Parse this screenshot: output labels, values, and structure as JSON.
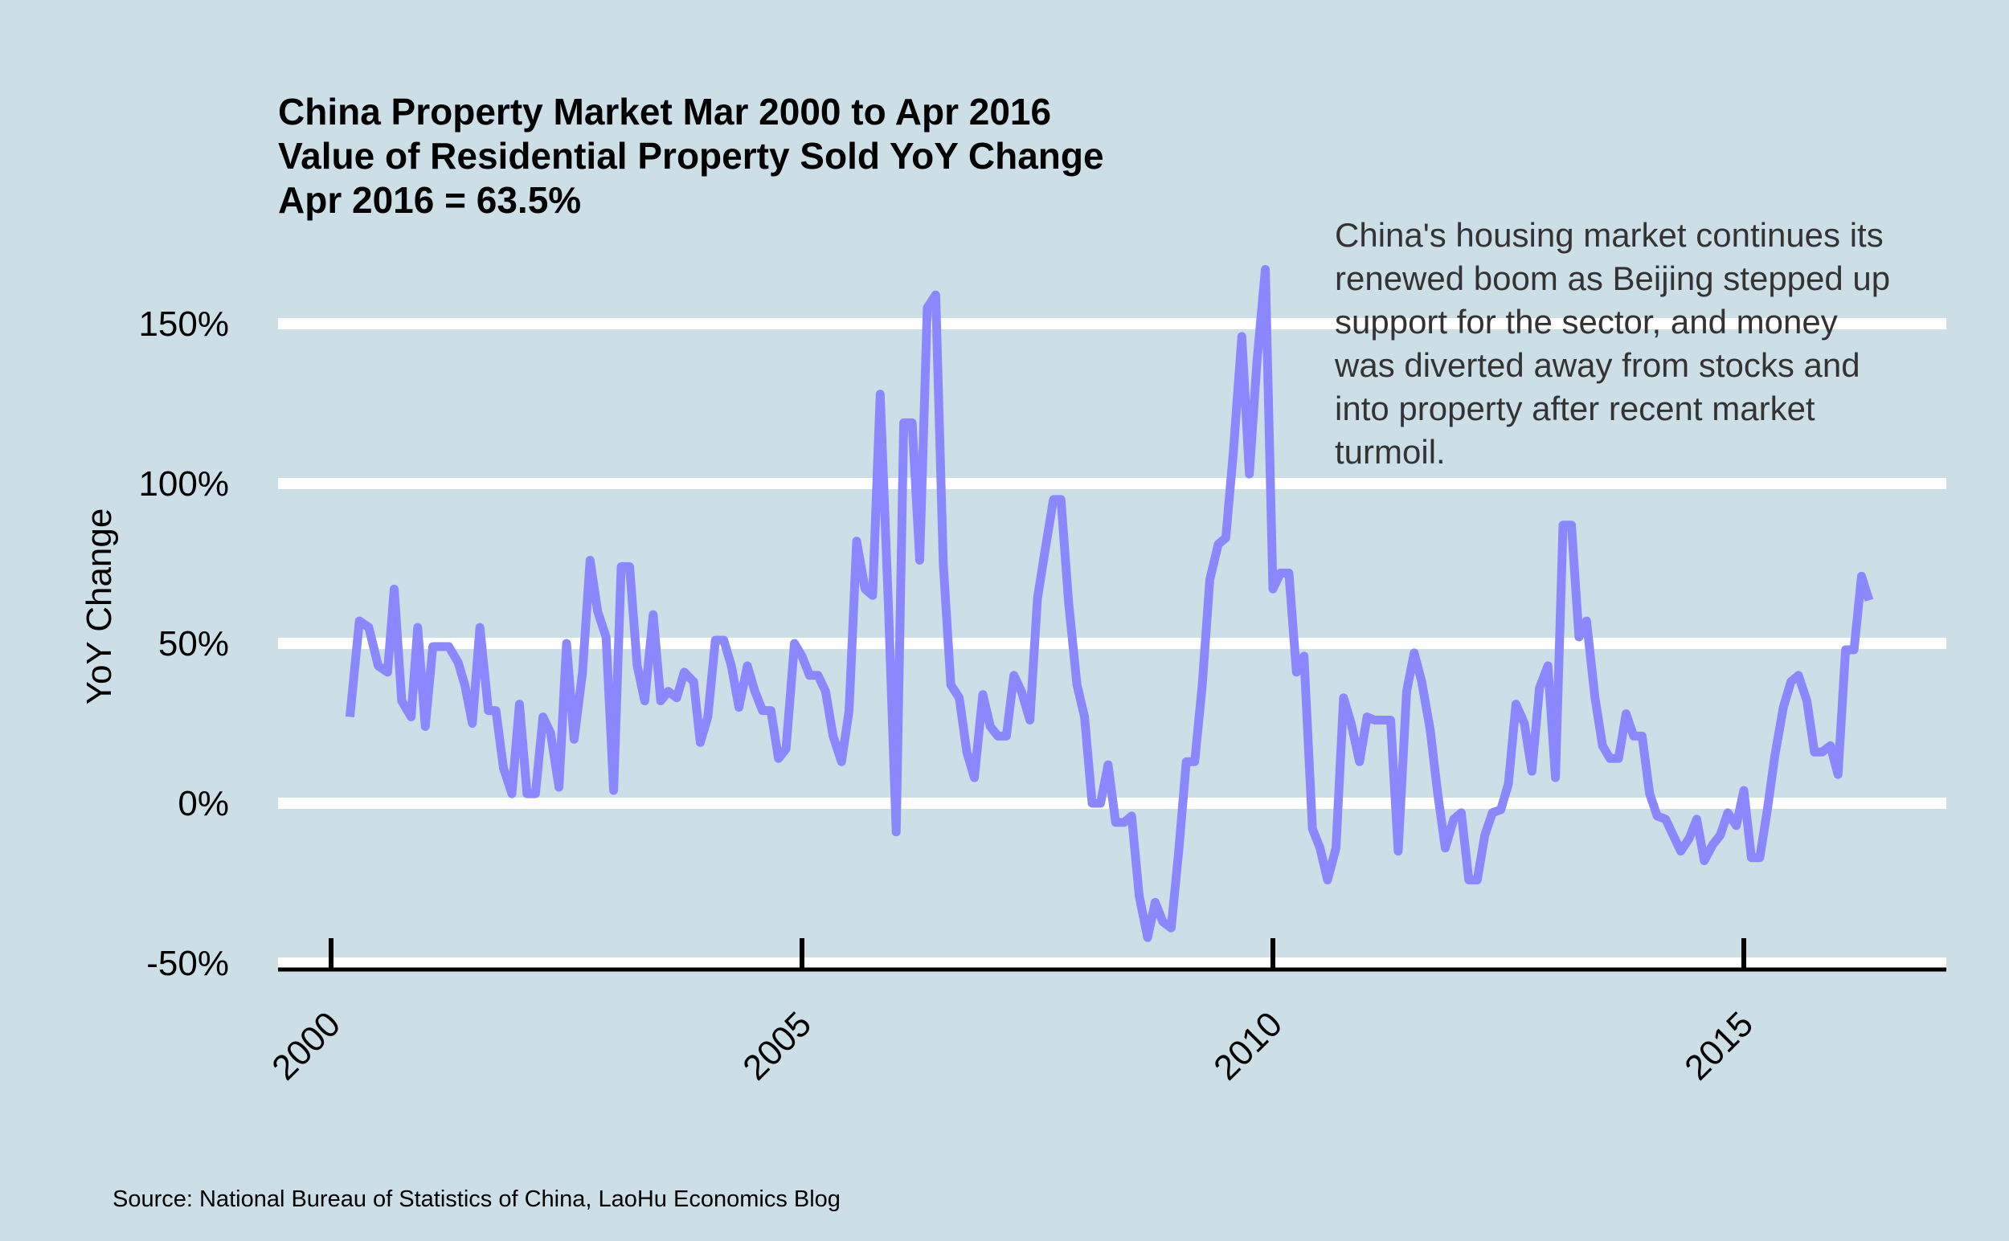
{
  "chart_data": {
    "type": "line",
    "title": "China Property Market Mar 2000 to Apr 2016",
    "subtitle_lines": [
      "Value of Residential Property Sold YoY Change",
      "Apr 2016 = 63.5%"
    ],
    "ylabel": "YoY Change",
    "xlabel": "",
    "ylim": [
      -50,
      170
    ],
    "xlim": [
      1999.45,
      2017.15
    ],
    "y_ticks": [
      {
        "value": 150,
        "label": "150%"
      },
      {
        "value": 100,
        "label": "100%"
      },
      {
        "value": 50,
        "label": "50%"
      },
      {
        "value": 0,
        "label": "0%"
      },
      {
        "value": -50,
        "label": "-50%"
      }
    ],
    "x_ticks": [
      {
        "value": 2000,
        "label": "2000"
      },
      {
        "value": 2005,
        "label": "2005"
      },
      {
        "value": 2010,
        "label": "2010"
      },
      {
        "value": 2015,
        "label": "2015"
      }
    ],
    "grid": "horizontal",
    "annotation_lines": [
      "China's housing market continues its",
      "renewed boom as Beijing stepped up",
      "support for the sector, and money",
      "was diverted away from stocks and",
      "into property after recent market",
      "turmoil."
    ],
    "source": "Source: National Bureau of Statistics of China, LaoHu Economics Blog",
    "colors": {
      "line": "#8a87ff",
      "background": "#cddfe6",
      "grid": "#ffffff",
      "axis": "#000000"
    },
    "series": [
      {
        "points": [
          [
            2000.2,
            27
          ],
          [
            2000.3,
            57
          ],
          [
            2000.4,
            55
          ],
          [
            2000.5,
            43
          ],
          [
            2000.6,
            41
          ],
          [
            2000.67,
            67
          ],
          [
            2000.75,
            32
          ],
          [
            2000.85,
            27
          ],
          [
            2000.92,
            55
          ],
          [
            2001.0,
            24
          ],
          [
            2001.08,
            49
          ],
          [
            2001.25,
            49
          ],
          [
            2001.35,
            44
          ],
          [
            2001.42,
            37
          ],
          [
            2001.5,
            25
          ],
          [
            2001.58,
            55
          ],
          [
            2001.67,
            29
          ],
          [
            2001.75,
            29
          ],
          [
            2001.83,
            11
          ],
          [
            2001.92,
            3
          ],
          [
            2002.0,
            31
          ],
          [
            2002.08,
            3
          ],
          [
            2002.17,
            3
          ],
          [
            2002.25,
            27
          ],
          [
            2002.33,
            22
          ],
          [
            2002.42,
            5
          ],
          [
            2002.5,
            50
          ],
          [
            2002.58,
            20
          ],
          [
            2002.67,
            41
          ],
          [
            2002.75,
            76
          ],
          [
            2002.83,
            60
          ],
          [
            2002.92,
            52
          ],
          [
            2003.0,
            4
          ],
          [
            2003.08,
            74
          ],
          [
            2003.17,
            74
          ],
          [
            2003.25,
            43
          ],
          [
            2003.33,
            32
          ],
          [
            2003.42,
            59
          ],
          [
            2003.5,
            32
          ],
          [
            2003.58,
            35
          ],
          [
            2003.67,
            33
          ],
          [
            2003.75,
            41
          ],
          [
            2003.85,
            38
          ],
          [
            2003.92,
            19
          ],
          [
            2004.0,
            27
          ],
          [
            2004.08,
            51
          ],
          [
            2004.17,
            51
          ],
          [
            2004.25,
            43
          ],
          [
            2004.33,
            30
          ],
          [
            2004.42,
            43
          ],
          [
            2004.5,
            35
          ],
          [
            2004.58,
            29
          ],
          [
            2004.67,
            29
          ],
          [
            2004.75,
            14
          ],
          [
            2004.83,
            17
          ],
          [
            2004.92,
            50
          ],
          [
            2005.0,
            46
          ],
          [
            2005.08,
            40
          ],
          [
            2005.17,
            40
          ],
          [
            2005.25,
            35
          ],
          [
            2005.33,
            21
          ],
          [
            2005.42,
            13
          ],
          [
            2005.5,
            29
          ],
          [
            2005.58,
            82
          ],
          [
            2005.67,
            67
          ],
          [
            2005.75,
            65
          ],
          [
            2005.83,
            128
          ],
          [
            2005.92,
            60
          ],
          [
            2006.0,
            -9
          ],
          [
            2006.08,
            119
          ],
          [
            2006.17,
            119
          ],
          [
            2006.25,
            76
          ],
          [
            2006.33,
            155
          ],
          [
            2006.42,
            159
          ],
          [
            2006.5,
            75
          ],
          [
            2006.58,
            37
          ],
          [
            2006.67,
            33
          ],
          [
            2006.75,
            16
          ],
          [
            2006.83,
            8
          ],
          [
            2006.92,
            34
          ],
          [
            2007.0,
            24
          ],
          [
            2007.08,
            21
          ],
          [
            2007.17,
            21
          ],
          [
            2007.25,
            40
          ],
          [
            2007.33,
            35
          ],
          [
            2007.42,
            26
          ],
          [
            2007.5,
            64
          ],
          [
            2007.58,
            79
          ],
          [
            2007.67,
            95
          ],
          [
            2007.75,
            95
          ],
          [
            2007.83,
            63
          ],
          [
            2007.92,
            37
          ],
          [
            2008.0,
            27
          ],
          [
            2008.08,
            0
          ],
          [
            2008.17,
            0
          ],
          [
            2008.25,
            12
          ],
          [
            2008.33,
            -6
          ],
          [
            2008.42,
            -6
          ],
          [
            2008.5,
            -4
          ],
          [
            2008.58,
            -29
          ],
          [
            2008.67,
            -42
          ],
          [
            2008.75,
            -31
          ],
          [
            2008.83,
            -37
          ],
          [
            2008.92,
            -39
          ],
          [
            2009.0,
            -15
          ],
          [
            2009.08,
            13
          ],
          [
            2009.17,
            13
          ],
          [
            2009.25,
            37
          ],
          [
            2009.33,
            70
          ],
          [
            2009.42,
            81
          ],
          [
            2009.5,
            83
          ],
          [
            2009.58,
            110
          ],
          [
            2009.67,
            146
          ],
          [
            2009.75,
            103
          ],
          [
            2009.83,
            138
          ],
          [
            2009.92,
            167
          ],
          [
            2010.0,
            67
          ],
          [
            2010.08,
            72
          ],
          [
            2010.17,
            72
          ],
          [
            2010.25,
            41
          ],
          [
            2010.33,
            46
          ],
          [
            2010.42,
            -8
          ],
          [
            2010.5,
            -14
          ],
          [
            2010.58,
            -24
          ],
          [
            2010.67,
            -14
          ],
          [
            2010.75,
            33
          ],
          [
            2010.83,
            25
          ],
          [
            2010.92,
            13
          ],
          [
            2011.0,
            27
          ],
          [
            2011.08,
            26
          ],
          [
            2011.17,
            26
          ],
          [
            2011.25,
            26
          ],
          [
            2011.33,
            -15
          ],
          [
            2011.42,
            35
          ],
          [
            2011.5,
            47
          ],
          [
            2011.58,
            38
          ],
          [
            2011.67,
            23
          ],
          [
            2011.75,
            3
          ],
          [
            2011.83,
            -14
          ],
          [
            2011.92,
            -5
          ],
          [
            2012.0,
            -3
          ],
          [
            2012.08,
            -24
          ],
          [
            2012.17,
            -24
          ],
          [
            2012.25,
            -10
          ],
          [
            2012.33,
            -3
          ],
          [
            2012.42,
            -2
          ],
          [
            2012.5,
            6
          ],
          [
            2012.58,
            31
          ],
          [
            2012.67,
            25
          ],
          [
            2012.75,
            10
          ],
          [
            2012.83,
            36
          ],
          [
            2012.92,
            43
          ],
          [
            2013.0,
            8
          ],
          [
            2013.08,
            87
          ],
          [
            2013.17,
            87
          ],
          [
            2013.25,
            52
          ],
          [
            2013.33,
            57
          ],
          [
            2013.42,
            33
          ],
          [
            2013.5,
            18
          ],
          [
            2013.58,
            14
          ],
          [
            2013.67,
            14
          ],
          [
            2013.75,
            28
          ],
          [
            2013.83,
            21
          ],
          [
            2013.92,
            21
          ],
          [
            2014.0,
            3
          ],
          [
            2014.08,
            -4
          ],
          [
            2014.17,
            -5
          ],
          [
            2014.25,
            -10
          ],
          [
            2014.33,
            -15
          ],
          [
            2014.42,
            -11
          ],
          [
            2014.5,
            -5
          ],
          [
            2014.58,
            -18
          ],
          [
            2014.67,
            -13
          ],
          [
            2014.75,
            -10
          ],
          [
            2014.83,
            -3
          ],
          [
            2014.92,
            -7
          ],
          [
            2015.0,
            4
          ],
          [
            2015.08,
            -17
          ],
          [
            2015.17,
            -17
          ],
          [
            2015.25,
            -2
          ],
          [
            2015.33,
            15
          ],
          [
            2015.42,
            30
          ],
          [
            2015.5,
            38
          ],
          [
            2015.58,
            40
          ],
          [
            2015.67,
            32
          ],
          [
            2015.75,
            16
          ],
          [
            2015.83,
            16
          ],
          [
            2015.92,
            18
          ],
          [
            2016.0,
            9
          ],
          [
            2016.08,
            48
          ],
          [
            2016.17,
            48
          ],
          [
            2016.25,
            71
          ],
          [
            2016.33,
            63.5
          ]
        ]
      }
    ]
  }
}
